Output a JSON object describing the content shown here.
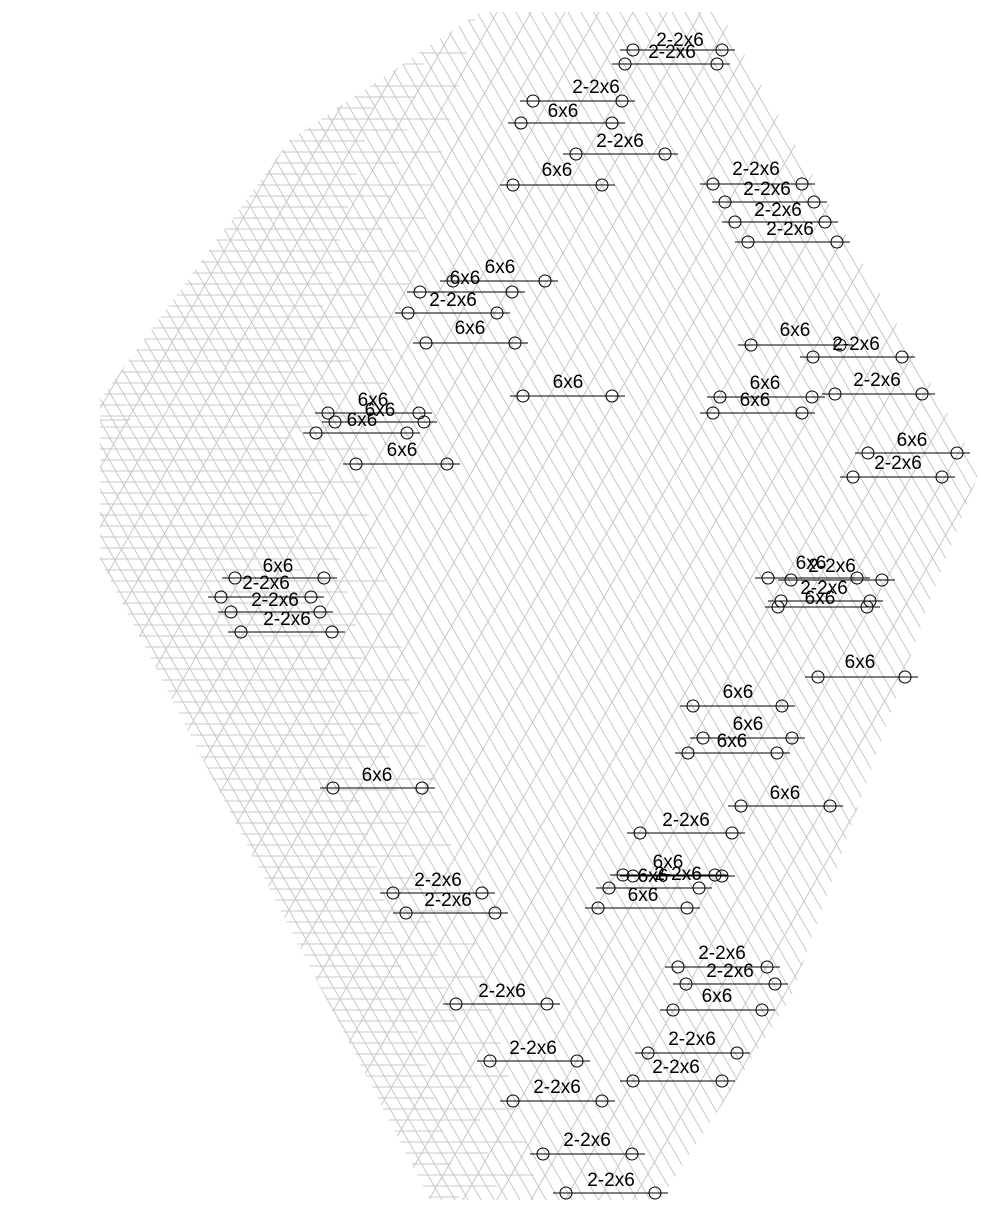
{
  "beams": [
    "2-2x6",
    "2-2x6",
    "2-2x6",
    "6x6",
    "2-2x6",
    "6x6",
    "2-2x6",
    "2-2x6",
    "2-2x6",
    "2-2x6",
    "6x6",
    "6x6",
    "2-2x6",
    "6x6",
    "6x6",
    "2-2x6",
    "6x6",
    "6x6",
    "2-2x6",
    "6x6",
    "6x6",
    "6x6",
    "6x6",
    "6x6",
    "6x6",
    "2-2x6",
    "6x6",
    "2-2x6",
    "2-2x6",
    "2-2x6",
    "6x6",
    "2-2x6",
    "2-2x6",
    "6x6",
    "6x6",
    "6x6",
    "6x6",
    "6x6",
    "6x6",
    "6x6",
    "2-2x6",
    "6x6",
    "6x6",
    "2-2x6",
    "6x6",
    "2-2x6",
    "2-2x6",
    "2-2x6",
    "2-2x6",
    "6x6",
    "2-2x6",
    "2-2x6",
    "2-2x6",
    "2-2x6",
    "2-2x6",
    "2-2x6",
    "2-2x6"
  ]
}
